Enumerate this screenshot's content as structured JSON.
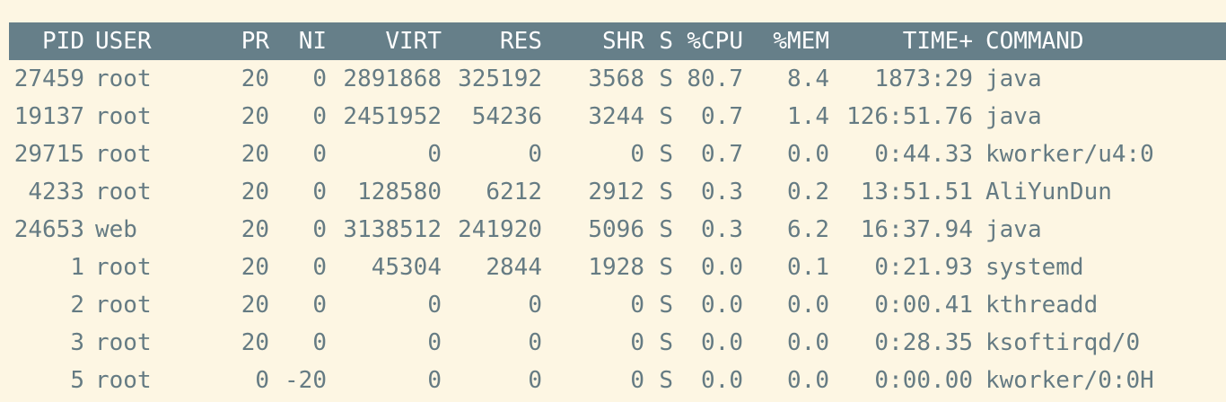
{
  "columns": [
    "PID",
    "USER",
    "PR",
    "NI",
    "VIRT",
    "RES",
    "SHR",
    "S",
    "%CPU",
    "%MEM",
    "TIME+",
    "COMMAND"
  ],
  "processes": [
    {
      "pid": "27459",
      "user": "root",
      "pr": "20",
      "ni": "0",
      "virt": "2891868",
      "res": "325192",
      "shr": "3568",
      "s": "S",
      "cpu": "80.7",
      "mem": "8.4",
      "time": "1873:29",
      "command": "java"
    },
    {
      "pid": "19137",
      "user": "root",
      "pr": "20",
      "ni": "0",
      "virt": "2451952",
      "res": "54236",
      "shr": "3244",
      "s": "S",
      "cpu": "0.7",
      "mem": "1.4",
      "time": "126:51.76",
      "command": "java"
    },
    {
      "pid": "29715",
      "user": "root",
      "pr": "20",
      "ni": "0",
      "virt": "0",
      "res": "0",
      "shr": "0",
      "s": "S",
      "cpu": "0.7",
      "mem": "0.0",
      "time": "0:44.33",
      "command": "kworker/u4:0"
    },
    {
      "pid": "4233",
      "user": "root",
      "pr": "20",
      "ni": "0",
      "virt": "128580",
      "res": "6212",
      "shr": "2912",
      "s": "S",
      "cpu": "0.3",
      "mem": "0.2",
      "time": "13:51.51",
      "command": "AliYunDun"
    },
    {
      "pid": "24653",
      "user": "web",
      "pr": "20",
      "ni": "0",
      "virt": "3138512",
      "res": "241920",
      "shr": "5096",
      "s": "S",
      "cpu": "0.3",
      "mem": "6.2",
      "time": "16:37.94",
      "command": "java"
    },
    {
      "pid": "1",
      "user": "root",
      "pr": "20",
      "ni": "0",
      "virt": "45304",
      "res": "2844",
      "shr": "1928",
      "s": "S",
      "cpu": "0.0",
      "mem": "0.1",
      "time": "0:21.93",
      "command": "systemd"
    },
    {
      "pid": "2",
      "user": "root",
      "pr": "20",
      "ni": "0",
      "virt": "0",
      "res": "0",
      "shr": "0",
      "s": "S",
      "cpu": "0.0",
      "mem": "0.0",
      "time": "0:00.41",
      "command": "kthreadd"
    },
    {
      "pid": "3",
      "user": "root",
      "pr": "20",
      "ni": "0",
      "virt": "0",
      "res": "0",
      "shr": "0",
      "s": "S",
      "cpu": "0.0",
      "mem": "0.0",
      "time": "0:28.35",
      "command": "ksoftirqd/0"
    },
    {
      "pid": "5",
      "user": "root",
      "pr": "0",
      "ni": "-20",
      "virt": "0",
      "res": "0",
      "shr": "0",
      "s": "S",
      "cpu": "0.0",
      "mem": "0.0",
      "time": "0:00.00",
      "command": "kworker/0:0H"
    }
  ],
  "colors": {
    "background": "#fdf6e3",
    "header_background": "#667f89",
    "header_text": "#ffffff",
    "text": "#657b83"
  }
}
